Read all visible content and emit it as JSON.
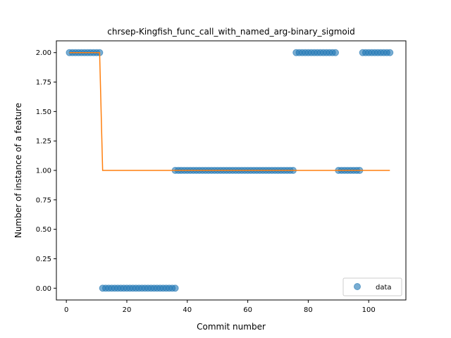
{
  "chart_data": {
    "type": "scatter",
    "title": "chrsep-Kingfish_func_call_with_named_arg-binary_sigmoid",
    "xlabel": "Commit number",
    "ylabel": "Number of instance of a feature",
    "xlim": [
      -3.3,
      112.3
    ],
    "ylim": [
      -0.1,
      2.1
    ],
    "xticks": [
      0,
      20,
      40,
      60,
      80,
      100
    ],
    "yticks": [
      0.0,
      0.25,
      0.5,
      0.75,
      1.0,
      1.25,
      1.5,
      1.75,
      2.0
    ],
    "ytick_labels": [
      "0.00",
      "0.25",
      "0.50",
      "0.75",
      "1.00",
      "1.25",
      "1.50",
      "1.75",
      "2.00"
    ],
    "legend": {
      "position": "bottom-right",
      "entries": [
        "data"
      ]
    },
    "series": [
      {
        "name": "data",
        "kind": "points",
        "color": "#1f77b4",
        "segments": [
          {
            "x_start": 1,
            "x_end": 11,
            "y": 2
          },
          {
            "x_start": 12,
            "x_end": 36,
            "y": 0
          },
          {
            "x_start": 36,
            "x_end": 75,
            "y": 1
          },
          {
            "x_start": 76,
            "x_end": 89,
            "y": 2
          },
          {
            "x_start": 90,
            "x_end": 97,
            "y": 1
          },
          {
            "x_start": 98,
            "x_end": 107,
            "y": 2
          }
        ]
      },
      {
        "kind": "line",
        "color": "#ff7f0e",
        "x": [
          1,
          11,
          12,
          107
        ],
        "y": [
          2,
          2,
          1,
          1
        ]
      }
    ]
  }
}
